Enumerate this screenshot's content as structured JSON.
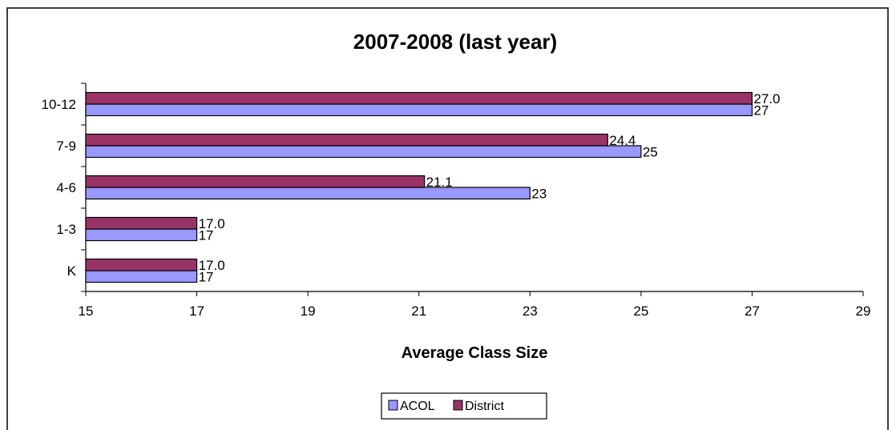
{
  "chart_data": {
    "type": "bar",
    "orientation": "horizontal",
    "title": "2007-2008 (last year)",
    "xlabel": "Average Class Size",
    "ylabel": "",
    "categories": [
      "K",
      "1-3",
      "4-6",
      "7-9",
      "10-12"
    ],
    "xlim": [
      15,
      29
    ],
    "xticks": [
      15,
      17,
      19,
      21,
      23,
      25,
      27,
      29
    ],
    "series": [
      {
        "name": "ACOL",
        "values": [
          17,
          17,
          23,
          25,
          27
        ],
        "labels": [
          "17",
          "17",
          "23",
          "25",
          "27"
        ],
        "color": "#9999FF"
      },
      {
        "name": "District",
        "values": [
          17.0,
          17.0,
          21.1,
          24.4,
          27.0
        ],
        "labels": [
          "17.0",
          "17.0",
          "21.1",
          "24.4",
          "27.0"
        ],
        "color": "#993366"
      }
    ],
    "grid": false,
    "legend_position": "bottom"
  }
}
